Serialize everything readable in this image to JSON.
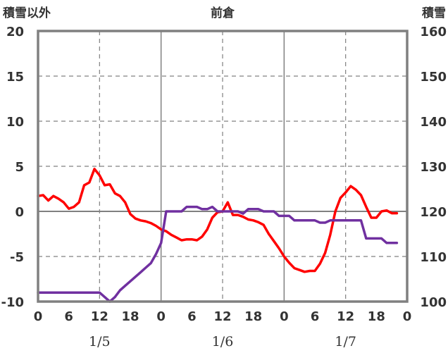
{
  "chart_data": {
    "type": "line",
    "title": "前倉",
    "left_axis_label": "積雪以外",
    "right_axis_label": "積雪",
    "left_ylim": [
      -10,
      20
    ],
    "right_ylim": [
      100,
      160
    ],
    "left_ticks": [
      "20",
      "15",
      "10",
      "5",
      "0",
      "-5",
      "-10"
    ],
    "right_ticks": [
      "160",
      "150",
      "140",
      "130",
      "120",
      "110",
      "100"
    ],
    "x_ticks": [
      "0",
      "6",
      "12",
      "18",
      "0",
      "6",
      "12",
      "18",
      "0",
      "6",
      "12",
      "18",
      "0"
    ],
    "date_labels": [
      "1/5",
      "1/6",
      "1/7"
    ],
    "xlim": [
      0,
      72
    ],
    "grid": true,
    "series": [
      {
        "axis": "left",
        "color": "#ff0000",
        "points": [
          [
            0,
            1.7
          ],
          [
            1,
            1.8
          ],
          [
            2,
            1.2
          ],
          [
            3,
            1.7
          ],
          [
            4,
            1.4
          ],
          [
            5,
            1.0
          ],
          [
            6,
            0.3
          ],
          [
            7,
            0.5
          ],
          [
            8,
            1.0
          ],
          [
            9,
            2.9
          ],
          [
            10,
            3.2
          ],
          [
            11,
            4.7
          ],
          [
            12,
            4.0
          ],
          [
            13,
            2.9
          ],
          [
            14,
            3.0
          ],
          [
            15,
            2.0
          ],
          [
            16,
            1.7
          ],
          [
            17,
            1.0
          ],
          [
            18,
            -0.3
          ],
          [
            19,
            -0.8
          ],
          [
            20,
            -1.0
          ],
          [
            21,
            -1.1
          ],
          [
            22,
            -1.3
          ],
          [
            23,
            -1.6
          ],
          [
            24,
            -2.0
          ],
          [
            25,
            -2.2
          ],
          [
            26,
            -2.6
          ],
          [
            27,
            -2.9
          ],
          [
            28,
            -3.2
          ],
          [
            29,
            -3.1
          ],
          [
            30,
            -3.1
          ],
          [
            31,
            -3.2
          ],
          [
            32,
            -2.8
          ],
          [
            33,
            -2.0
          ],
          [
            34,
            -0.7
          ],
          [
            35,
            -0.1
          ],
          [
            36,
            0.0
          ],
          [
            37,
            1.0
          ],
          [
            38,
            -0.4
          ],
          [
            39,
            -0.4
          ],
          [
            40,
            -0.6
          ],
          [
            41,
            -0.9
          ],
          [
            42,
            -1.0
          ],
          [
            43,
            -1.2
          ],
          [
            44,
            -1.5
          ],
          [
            45,
            -2.5
          ],
          [
            46,
            -3.3
          ],
          [
            47,
            -4.1
          ],
          [
            48,
            -5.0
          ],
          [
            49,
            -5.7
          ],
          [
            50,
            -6.3
          ],
          [
            51,
            -6.5
          ],
          [
            52,
            -6.7
          ],
          [
            53,
            -6.6
          ],
          [
            54,
            -6.6
          ],
          [
            55,
            -5.8
          ],
          [
            56,
            -4.6
          ],
          [
            57,
            -2.6
          ],
          [
            58,
            0.0
          ],
          [
            59,
            1.5
          ],
          [
            60,
            2.1
          ],
          [
            61,
            2.8
          ],
          [
            62,
            2.4
          ],
          [
            63,
            1.8
          ],
          [
            64,
            0.5
          ],
          [
            65,
            -0.7
          ],
          [
            66,
            -0.7
          ],
          [
            67,
            0.0
          ],
          [
            68,
            0.1
          ],
          [
            69,
            -0.2
          ],
          [
            70,
            -0.2
          ]
        ]
      },
      {
        "axis": "right",
        "color": "#7030a0",
        "points": [
          [
            0,
            102
          ],
          [
            11,
            102
          ],
          [
            12,
            102
          ],
          [
            13,
            101
          ],
          [
            14,
            100
          ],
          [
            15,
            101
          ],
          [
            16,
            102.5
          ],
          [
            17,
            103.5
          ],
          [
            18,
            104.5
          ],
          [
            19,
            105.5
          ],
          [
            20,
            106.5
          ],
          [
            21,
            107.5
          ],
          [
            22,
            108.5
          ],
          [
            23,
            110.5
          ],
          [
            24,
            113
          ],
          [
            25,
            120
          ],
          [
            26,
            120
          ],
          [
            27,
            120
          ],
          [
            28,
            120
          ],
          [
            29,
            121
          ],
          [
            30,
            121
          ],
          [
            31,
            121
          ],
          [
            32,
            120.5
          ],
          [
            33,
            120.5
          ],
          [
            34,
            121
          ],
          [
            35,
            120
          ],
          [
            36,
            120
          ],
          [
            37,
            120
          ],
          [
            38,
            120
          ],
          [
            39,
            120
          ],
          [
            40,
            119.5
          ],
          [
            41,
            120.5
          ],
          [
            42,
            120.5
          ],
          [
            43,
            120.5
          ],
          [
            44,
            120
          ],
          [
            45,
            120
          ],
          [
            46,
            120
          ],
          [
            47,
            119
          ],
          [
            48,
            119
          ],
          [
            49,
            119
          ],
          [
            50,
            118
          ],
          [
            51,
            118
          ],
          [
            52,
            118
          ],
          [
            53,
            118
          ],
          [
            54,
            118
          ],
          [
            55,
            117.5
          ],
          [
            56,
            117.5
          ],
          [
            57,
            118
          ],
          [
            58,
            118
          ],
          [
            59,
            118
          ],
          [
            60,
            118
          ],
          [
            61,
            118
          ],
          [
            62,
            118
          ],
          [
            63,
            118
          ],
          [
            64,
            114
          ],
          [
            65,
            114
          ],
          [
            66,
            114
          ],
          [
            67,
            114
          ],
          [
            68,
            113
          ],
          [
            69,
            113
          ],
          [
            70,
            113
          ]
        ]
      }
    ]
  }
}
